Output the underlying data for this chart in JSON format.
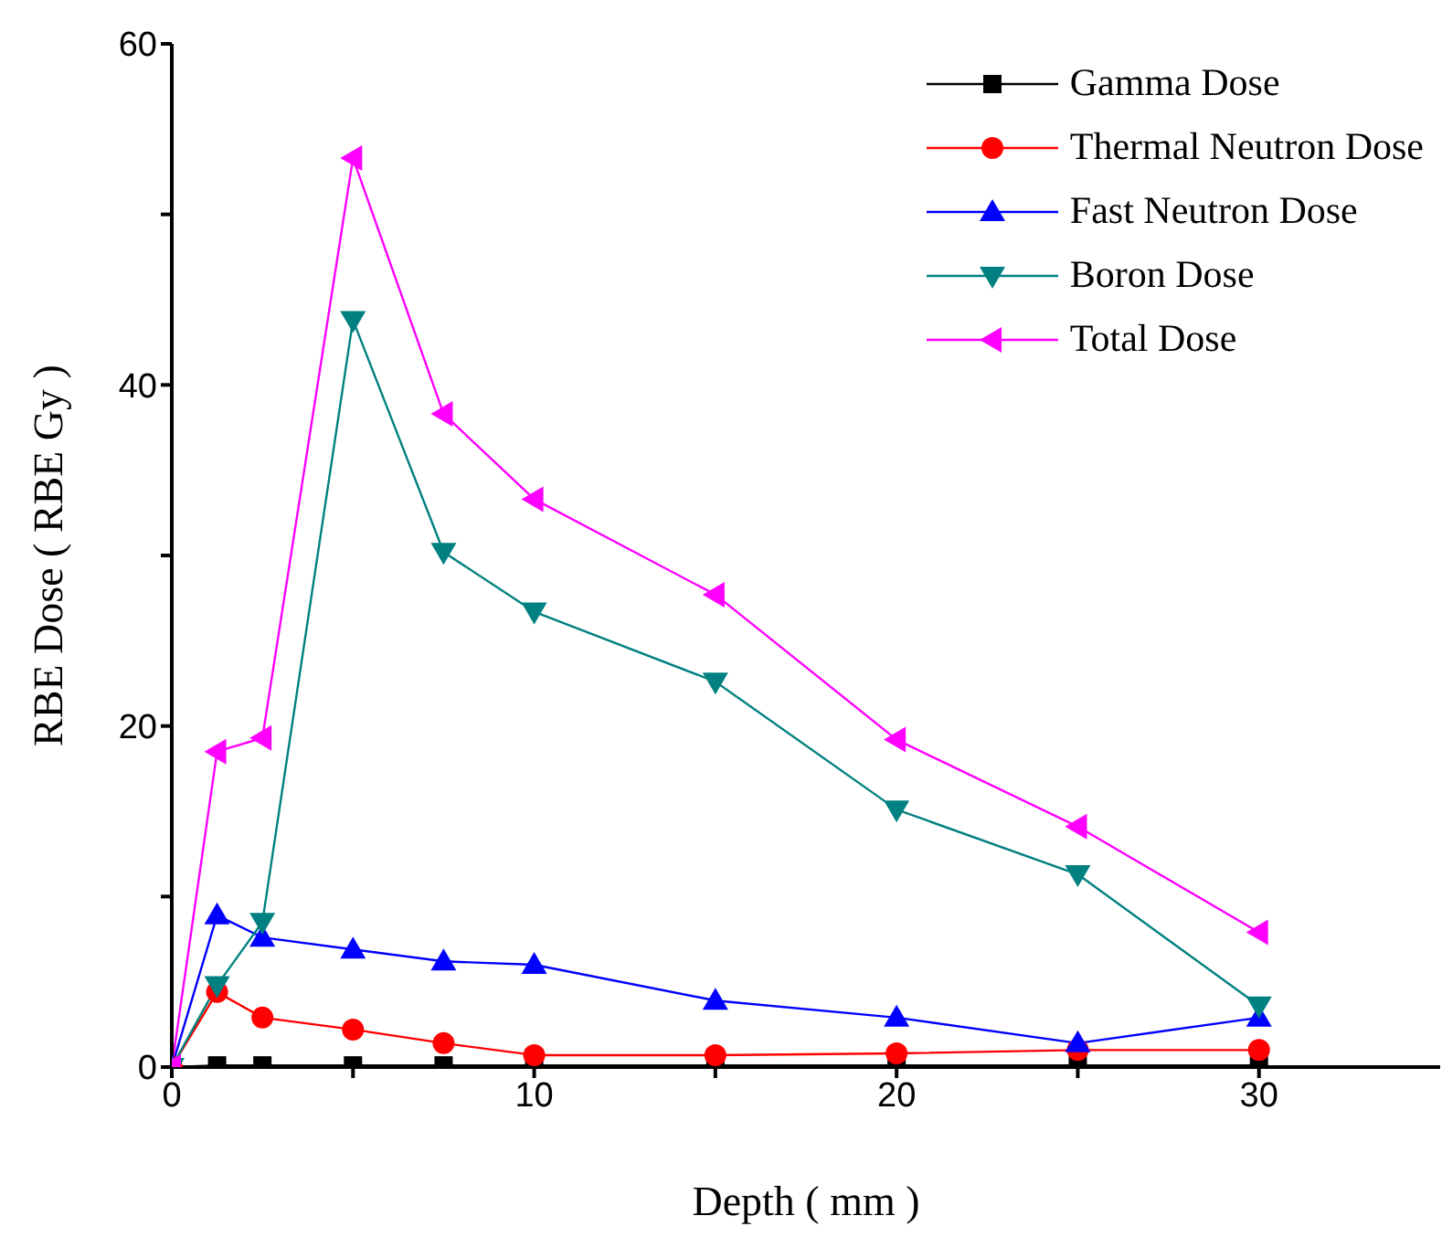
{
  "chart_data": {
    "type": "line",
    "xlabel": "Depth ( mm )",
    "ylabel": "RBE Dose ( RBE Gy )",
    "x": [
      0,
      1.25,
      2.5,
      5,
      7.5,
      10,
      15,
      20,
      25,
      30
    ],
    "series": [
      {
        "name": "Gamma Dose",
        "color": "#000000",
        "marker": "square",
        "values": [
          0,
          0.1,
          0.1,
          0.1,
          0.1,
          0.1,
          0.1,
          0.1,
          0.1,
          0.1
        ]
      },
      {
        "name": "Thermal Neutron Dose",
        "color": "#ff0000",
        "marker": "circle",
        "values": [
          0,
          4.4,
          2.9,
          2.2,
          1.4,
          0.7,
          0.7,
          0.8,
          1.0,
          1.0
        ]
      },
      {
        "name": "Fast Neutron Dose",
        "color": "#0000ff",
        "marker": "triangle",
        "values": [
          0,
          8.9,
          7.6,
          6.9,
          6.2,
          6.0,
          3.9,
          2.9,
          1.4,
          2.9
        ]
      },
      {
        "name": "Boron Dose",
        "color": "#008080",
        "marker": "triangle-down",
        "values": [
          0,
          4.8,
          8.5,
          43.8,
          30.2,
          26.7,
          22.6,
          15.1,
          11.3,
          3.6
        ]
      },
      {
        "name": "Total Dose",
        "color": "#ff00ff",
        "marker": "triangle-left",
        "values": [
          0,
          18.5,
          19.3,
          53.3,
          38.3,
          33.3,
          27.7,
          19.2,
          14.1,
          7.9
        ]
      }
    ],
    "xlim": [
      0,
      35
    ],
    "xticks": [
      0,
      {
        "value": 5,
        "label": null
      },
      10,
      {
        "value": 15,
        "label": null
      },
      20,
      {
        "value": 25,
        "label": null
      },
      30
    ],
    "ylim": [
      0,
      60
    ],
    "yticks": [
      0,
      {
        "value": 10,
        "label": null
      },
      20,
      {
        "value": 30,
        "label": null
      },
      40,
      {
        "value": 50,
        "label": null
      },
      60
    ],
    "grid": false,
    "legend": "top right",
    "line_style": "solid"
  }
}
